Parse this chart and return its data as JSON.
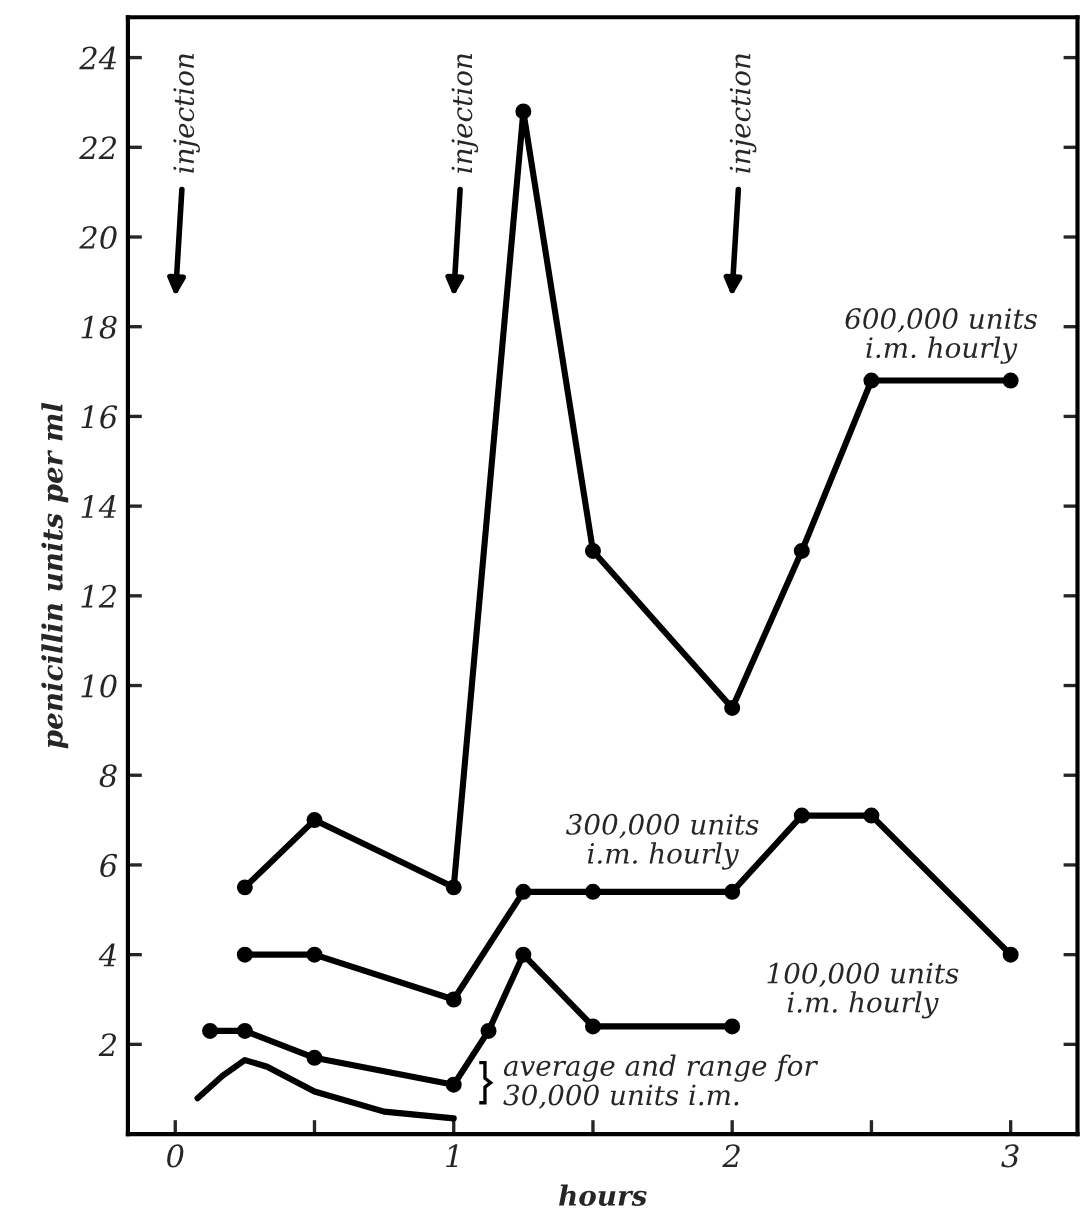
{
  "chart_data": {
    "type": "line",
    "xlabel": "hours",
    "ylabel": "penicillin units per ml",
    "xlim": [
      -0.17,
      3.24
    ],
    "ylim": [
      0,
      24.9
    ],
    "xticks": [
      0,
      {
        "value": 0.5,
        "label": null
      },
      1,
      {
        "value": 1.5,
        "label": null
      },
      2,
      {
        "value": 2.5,
        "label": null
      },
      3
    ],
    "yticks": [
      2,
      4,
      6,
      8,
      10,
      12,
      14,
      16,
      18,
      20,
      22,
      24
    ],
    "grid": false,
    "legend": false,
    "line_style": "solid",
    "series": [
      {
        "color": "#000000",
        "marker": "circle",
        "x": [
          0.25,
          0.5,
          1,
          1.25,
          1.5,
          2,
          2.25,
          2.5,
          3
        ],
        "values": [
          5.5,
          7,
          5.5,
          22.8,
          13,
          9.5,
          13,
          16.8,
          16.8
        ]
      },
      {
        "color": "#000000",
        "marker": "circle",
        "x": [
          0.25,
          0.5,
          1,
          1.25,
          1.5,
          2,
          2.25,
          2.5,
          3
        ],
        "values": [
          4,
          4,
          3,
          5.4,
          5.4,
          5.4,
          7.1,
          7.1,
          4
        ]
      },
      {
        "color": "#000000",
        "marker": "circle",
        "x": [
          0.125,
          0.25,
          0.5,
          1,
          1.125,
          1.25,
          1.5,
          2
        ],
        "values": [
          2.3,
          2.3,
          1.7,
          1.1,
          2.3,
          4,
          2.4,
          2.4
        ]
      },
      {
        "color": "#000000",
        "marker": "none",
        "x": [
          0.08,
          0.17,
          0.25,
          0.33,
          0.5,
          0.75,
          1
        ],
        "values": [
          0.8,
          1.3,
          1.65,
          1.5,
          0.95,
          0.5,
          0.35
        ]
      }
    ],
    "annotations": [
      "injection",
      "injection",
      "injection",
      {
        "text": "600,000 units\ni.m. hourly",
        "x": 2.75,
        "y": 16.8
      },
      {
        "text": "300,000 units\ni.m. hourly",
        "x": 1.75,
        "y": 5.4
      },
      {
        "text": "100,000 units\ni.m. hourly",
        "x": 2,
        "y": 2.4
      },
      "average and range for\n30,000 units i.m."
    ]
  }
}
